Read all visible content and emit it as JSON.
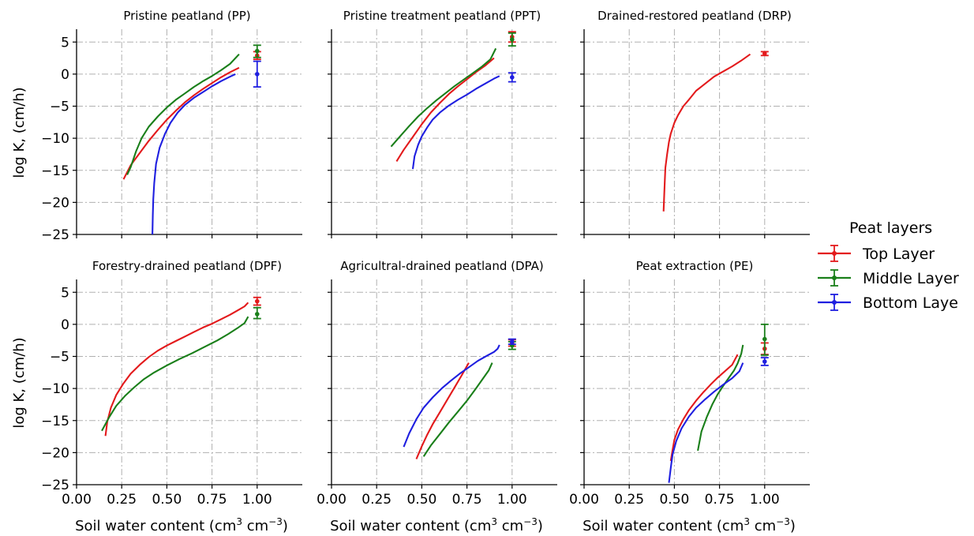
{
  "figure": {
    "ylabel": "log K, (cm/h)",
    "xlabel_text": "Soil water content (cm",
    "xlabel_mid": " cm",
    "xlabel_close": ")",
    "xlabel_sup1": "3",
    "xlabel_sup2": "−3"
  },
  "legend": {
    "title": "Peat layers",
    "entries": [
      {
        "name": "Top Layer",
        "color": "#e31a1c"
      },
      {
        "name": "Middle Layer",
        "color": "#1a7f1a"
      },
      {
        "name": "Bottom Laye",
        "color": "#1f1fe0"
      }
    ]
  },
  "colors": {
    "top": "#e31a1c",
    "middle": "#1a7f1a",
    "bottom": "#1f1fe0",
    "grid": "#b0b0b0"
  },
  "chart_data": [
    {
      "type": "line",
      "title": "Pristine peatland (PP)",
      "xlim": [
        0,
        1.25
      ],
      "ylim": [
        -25,
        7
      ],
      "xticks": [
        "0.00",
        "0.25",
        "0.50",
        "0.75",
        "1.00"
      ],
      "yticks": [
        "5",
        "0",
        "−5",
        "−10",
        "−15",
        "−20",
        "−25"
      ],
      "grid": true,
      "series": [
        {
          "name": "Top Layer",
          "x": [
            0.26,
            0.3,
            0.35,
            0.4,
            0.45,
            0.5,
            0.55,
            0.6,
            0.65,
            0.7,
            0.75,
            0.8,
            0.85,
            0.9
          ],
          "y": [
            -16.4,
            -14.2,
            -12.3,
            -10.4,
            -8.7,
            -7.1,
            -5.7,
            -4.4,
            -3.3,
            -2.3,
            -1.4,
            -0.5,
            0.3,
            1.0
          ],
          "errorbar": {
            "x": 1.0,
            "y": 2.9,
            "lo": 2.3,
            "hi": 3.5
          }
        },
        {
          "name": "Middle Layer",
          "x": [
            0.28,
            0.3,
            0.33,
            0.36,
            0.4,
            0.45,
            0.5,
            0.55,
            0.6,
            0.65,
            0.7,
            0.75,
            0.8,
            0.85,
            0.9
          ],
          "y": [
            -15.7,
            -14.5,
            -12.0,
            -10.0,
            -8.2,
            -6.6,
            -5.2,
            -4.0,
            -3.0,
            -2.0,
            -1.1,
            -0.3,
            0.6,
            1.6,
            3.1
          ],
          "errorbar": {
            "x": 1.0,
            "y": 3.6,
            "lo": 2.6,
            "hi": 4.5
          }
        },
        {
          "name": "Bottom Laye",
          "x": [
            0.42,
            0.422,
            0.425,
            0.43,
            0.44,
            0.46,
            0.49,
            0.52,
            0.56,
            0.6,
            0.65,
            0.7,
            0.75,
            0.8,
            0.85,
            0.88
          ],
          "y": [
            -25,
            -22,
            -19.5,
            -17,
            -14,
            -11.5,
            -9.3,
            -7.6,
            -6.0,
            -4.8,
            -3.7,
            -2.8,
            -1.9,
            -1.1,
            -0.4,
            0.0
          ],
          "errorbar": {
            "x": 1.0,
            "y": 0.0,
            "lo": -2.0,
            "hi": 2.0
          }
        }
      ]
    },
    {
      "type": "line",
      "title": "Pristine treatment peatland (PPT)",
      "xlim": [
        0,
        1.25
      ],
      "ylim": [
        -25,
        7
      ],
      "xticks": [
        "0.00",
        "0.25",
        "0.50",
        "0.75",
        "1.00"
      ],
      "yticks": [
        "5",
        "0",
        "−5",
        "−10",
        "−15",
        "−20",
        "−25"
      ],
      "grid": true,
      "series": [
        {
          "name": "Top Layer",
          "x": [
            0.36,
            0.4,
            0.45,
            0.5,
            0.55,
            0.6,
            0.65,
            0.7,
            0.75,
            0.8,
            0.85,
            0.9
          ],
          "y": [
            -13.6,
            -11.8,
            -9.8,
            -7.8,
            -6.0,
            -4.5,
            -3.1,
            -1.9,
            -0.8,
            0.3,
            1.3,
            2.5
          ],
          "errorbar": {
            "x": 1.0,
            "y": 5.8,
            "lo": 5.0,
            "hi": 6.6
          }
        },
        {
          "name": "Middle Layer",
          "x": [
            0.33,
            0.38,
            0.43,
            0.48,
            0.53,
            0.58,
            0.63,
            0.68,
            0.73,
            0.78,
            0.83,
            0.88,
            0.91
          ],
          "y": [
            -11.3,
            -9.7,
            -8.1,
            -6.6,
            -5.3,
            -4.1,
            -3.0,
            -1.9,
            -0.9,
            0.1,
            1.1,
            2.3,
            4.0
          ],
          "errorbar": {
            "x": 1.0,
            "y": 5.4,
            "lo": 4.4,
            "hi": 6.4
          }
        },
        {
          "name": "Bottom Laye",
          "x": [
            0.45,
            0.46,
            0.48,
            0.5,
            0.53,
            0.56,
            0.6,
            0.65,
            0.7,
            0.75,
            0.8,
            0.85,
            0.9,
            0.93
          ],
          "y": [
            -14.8,
            -12.8,
            -11.0,
            -9.7,
            -8.3,
            -7.1,
            -6.0,
            -4.9,
            -4.0,
            -3.2,
            -2.3,
            -1.5,
            -0.7,
            -0.3
          ],
          "errorbar": {
            "x": 1.0,
            "y": -0.5,
            "lo": -1.2,
            "hi": 0.2
          }
        }
      ]
    },
    {
      "type": "line",
      "title": "Drained-restored peatland (DRP)",
      "xlim": [
        0,
        1.25
      ],
      "ylim": [
        -25,
        7
      ],
      "xticks": [
        "0.00",
        "0.25",
        "0.50",
        "0.75",
        "1.00"
      ],
      "yticks": [
        "5",
        "0",
        "−5",
        "−10",
        "−15",
        "−20",
        "−25"
      ],
      "grid": true,
      "series": [
        {
          "name": "Top Layer",
          "x": [
            0.44,
            0.445,
            0.45,
            0.46,
            0.47,
            0.48,
            0.5,
            0.52,
            0.55,
            0.58,
            0.62,
            0.67,
            0.72,
            0.77,
            0.82,
            0.87,
            0.92
          ],
          "y": [
            -21.4,
            -18.0,
            -14.6,
            -12.5,
            -10.6,
            -9.3,
            -7.6,
            -6.4,
            -5.0,
            -4.0,
            -2.6,
            -1.5,
            -0.4,
            0.4,
            1.2,
            2.1,
            3.1
          ],
          "errorbar": {
            "x": 1.0,
            "y": 3.2,
            "lo": 2.9,
            "hi": 3.5
          }
        }
      ]
    },
    {
      "type": "line",
      "title": "Forestry-drained peatland (DPF)",
      "xlim": [
        0,
        1.25
      ],
      "ylim": [
        -25,
        7
      ],
      "xticks": [
        "0.00",
        "0.25",
        "0.50",
        "0.75",
        "1.00"
      ],
      "yticks": [
        "5",
        "0",
        "−5",
        "−10",
        "−15",
        "−20",
        "−25"
      ],
      "grid": true,
      "series": [
        {
          "name": "Top Layer",
          "x": [
            0.16,
            0.17,
            0.19,
            0.22,
            0.26,
            0.3,
            0.35,
            0.4,
            0.45,
            0.5,
            0.55,
            0.6,
            0.65,
            0.7,
            0.75,
            0.8,
            0.85,
            0.9,
            0.93,
            0.95
          ],
          "y": [
            -17.4,
            -15.2,
            -13.0,
            -11.0,
            -9.2,
            -7.7,
            -6.3,
            -5.1,
            -4.1,
            -3.3,
            -2.6,
            -1.9,
            -1.2,
            -0.5,
            0.1,
            0.8,
            1.5,
            2.3,
            2.8,
            3.4
          ],
          "errorbar": {
            "x": 1.0,
            "y": 3.6,
            "lo": 3.0,
            "hi": 4.2
          }
        },
        {
          "name": "Middle Layer",
          "x": [
            0.14,
            0.18,
            0.22,
            0.27,
            0.32,
            0.37,
            0.43,
            0.5,
            0.57,
            0.64,
            0.71,
            0.78,
            0.84,
            0.89,
            0.93,
            0.95
          ],
          "y": [
            -16.6,
            -14.5,
            -12.7,
            -11.1,
            -9.8,
            -8.6,
            -7.5,
            -6.4,
            -5.4,
            -4.5,
            -3.5,
            -2.5,
            -1.5,
            -0.6,
            0.2,
            1.2
          ],
          "errorbar": {
            "x": 1.0,
            "y": 1.6,
            "lo": 0.9,
            "hi": 2.6
          }
        }
      ]
    },
    {
      "type": "line",
      "title": "Agricultral-drained peatland (DPA)",
      "xlim": [
        0,
        1.25
      ],
      "ylim": [
        -25,
        7
      ],
      "xticks": [
        "0.00",
        "0.25",
        "0.50",
        "0.75",
        "1.00"
      ],
      "yticks": [
        "5",
        "0",
        "−5",
        "−10",
        "−15",
        "−20",
        "−25"
      ],
      "grid": true,
      "series": [
        {
          "name": "Top Layer",
          "x": [
            0.47,
            0.5,
            0.53,
            0.56,
            0.6,
            0.64,
            0.68,
            0.72,
            0.76
          ],
          "y": [
            -21.0,
            -19.0,
            -17.2,
            -15.6,
            -13.7,
            -11.8,
            -9.9,
            -8.0,
            -6.0
          ],
          "errorbar": {
            "x": 1.0,
            "y": -2.9,
            "lo": -3.4,
            "hi": -2.4
          }
        },
        {
          "name": "Middle Layer",
          "x": [
            0.51,
            0.55,
            0.6,
            0.65,
            0.7,
            0.75,
            0.8,
            0.84,
            0.87,
            0.89
          ],
          "y": [
            -20.6,
            -18.9,
            -17.1,
            -15.3,
            -13.6,
            -11.9,
            -10.0,
            -8.4,
            -7.2,
            -6.0
          ],
          "errorbar": {
            "x": 1.0,
            "y": -3.3,
            "lo": -3.9,
            "hi": -2.7
          }
        },
        {
          "name": "Bottom Laye",
          "x": [
            0.4,
            0.43,
            0.47,
            0.51,
            0.56,
            0.61,
            0.66,
            0.71,
            0.76,
            0.81,
            0.86,
            0.9,
            0.92,
            0.93
          ],
          "y": [
            -19.1,
            -17.0,
            -14.8,
            -13.0,
            -11.4,
            -10.0,
            -8.8,
            -7.7,
            -6.7,
            -5.7,
            -4.9,
            -4.3,
            -3.8,
            -3.2
          ],
          "errorbar": {
            "x": 1.0,
            "y": -2.7,
            "lo": -3.1,
            "hi": -2.3
          }
        }
      ]
    },
    {
      "type": "line",
      "title": "Peat extraction (PE)",
      "xlim": [
        0,
        1.25
      ],
      "ylim": [
        -25,
        7
      ],
      "xticks": [
        "0.00",
        "0.25",
        "0.50",
        "0.75",
        "1.00"
      ],
      "yticks": [
        "5",
        "0",
        "−5",
        "−10",
        "−15",
        "−20",
        "−25"
      ],
      "grid": true,
      "series": [
        {
          "name": "Top Layer",
          "x": [
            0.48,
            0.49,
            0.5,
            0.52,
            0.55,
            0.58,
            0.62,
            0.66,
            0.7,
            0.74,
            0.78,
            0.82,
            0.85
          ],
          "y": [
            -21.3,
            -19.6,
            -18.0,
            -16.4,
            -14.8,
            -13.4,
            -11.9,
            -10.6,
            -9.4,
            -8.3,
            -7.3,
            -6.3,
            -4.7
          ],
          "errorbar": {
            "x": 1.0,
            "y": -3.8,
            "lo": -4.7,
            "hi": -2.9
          }
        },
        {
          "name": "Middle Layer",
          "x": [
            0.63,
            0.65,
            0.68,
            0.71,
            0.74,
            0.77,
            0.8,
            0.83,
            0.85,
            0.87,
            0.88
          ],
          "y": [
            -19.7,
            -16.7,
            -14.4,
            -12.5,
            -10.9,
            -9.6,
            -8.4,
            -7.2,
            -6.1,
            -4.6,
            -3.2
          ],
          "errorbar": {
            "x": 1.0,
            "y": -2.3,
            "lo": -4.8,
            "hi": 0.0
          }
        },
        {
          "name": "Bottom Laye",
          "x": [
            0.47,
            0.48,
            0.49,
            0.51,
            0.54,
            0.58,
            0.62,
            0.67,
            0.72,
            0.77,
            0.82,
            0.86,
            0.88
          ],
          "y": [
            -24.7,
            -22.4,
            -20.3,
            -18.2,
            -16.2,
            -14.4,
            -13.0,
            -11.7,
            -10.5,
            -9.4,
            -8.4,
            -7.3,
            -6.0
          ],
          "errorbar": {
            "x": 1.0,
            "y": -5.8,
            "lo": -6.4,
            "hi": -5.2
          }
        }
      ]
    }
  ]
}
